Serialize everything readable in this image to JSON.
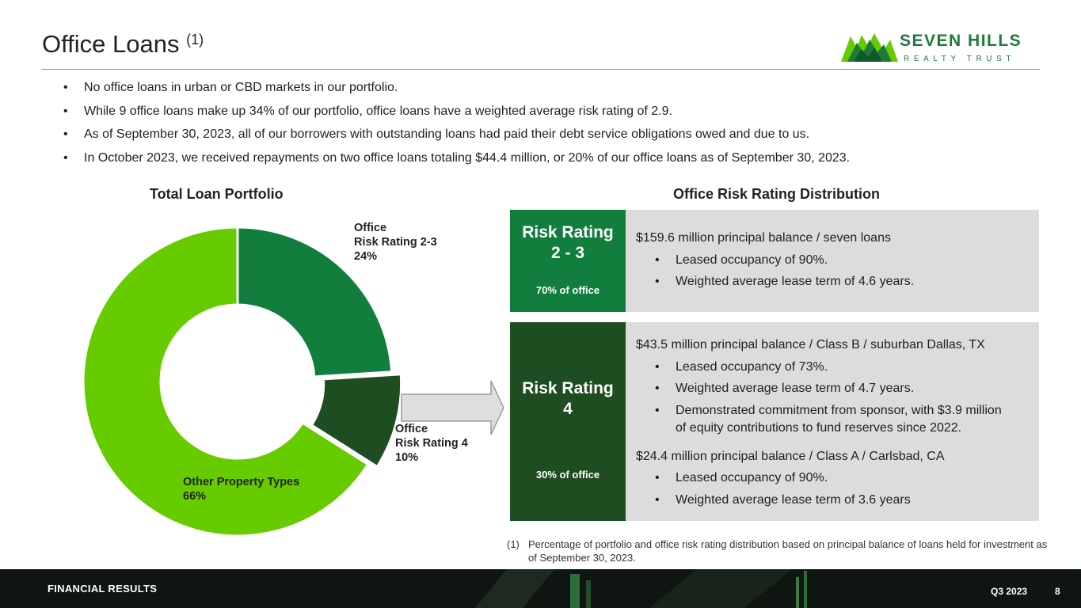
{
  "header": {
    "title": "Office Loans",
    "title_note": "(1)",
    "logo_name": "SEVEN HILLS",
    "logo_sub": "REALTY TRUST",
    "logo_icon": "mountain-peaks-icon"
  },
  "bullets": [
    "No office loans in urban or CBD markets in our portfolio.",
    "While 9 office loans make up 34% of our portfolio, office loans have a weighted average risk rating of 2.9.",
    "As of September 30, 2023, all of our borrowers with outstanding loans had paid their debt service obligations owed and due to us.",
    "In October 2023, we received repayments on two office loans totaling $44.4 million, or 20% of our office loans as of September 30, 2023."
  ],
  "chart_data": {
    "type": "pie",
    "variant": "donut",
    "title": "Total Loan Portfolio",
    "slices": [
      {
        "label": "Office\nRisk Rating 2-3\n24%",
        "value": 24,
        "color": "#117e3e"
      },
      {
        "label": "Office\nRisk Rating 4\n10%",
        "value": 10,
        "color": "#1f4d22",
        "exploded": true
      },
      {
        "label": "Other Property Types\n66%",
        "value": 66,
        "color": "#66cc00"
      }
    ],
    "legend": "none"
  },
  "distribution": {
    "title": "Office Risk Rating Distribution",
    "rating_23": {
      "title_line1": "Risk Rating",
      "title_line2": "2 - 3",
      "share": "70% of office",
      "color": "#117e3e",
      "lines": [
        {
          "text": "$159.6 million principal balance / seven loans",
          "kind": "head"
        },
        {
          "text": "Leased occupancy of 90%.",
          "kind": "bullet"
        },
        {
          "text": "Weighted average lease term of 4.6 years.",
          "kind": "bullet"
        }
      ]
    },
    "rating_4": {
      "title_line1": "Risk Rating",
      "title_line2": "4",
      "share": "30% of office",
      "color": "#1f4d22",
      "lines": [
        {
          "text": "$43.5 million principal balance / Class B / suburban Dallas, TX",
          "kind": "head"
        },
        {
          "text": "Leased occupancy of 73%.",
          "kind": "bullet"
        },
        {
          "text": "Weighted average lease term of 4.7 years.",
          "kind": "bullet"
        },
        {
          "text": "Demonstrated commitment from sponsor, with $3.9 million",
          "kind": "bullet"
        },
        {
          "text": "of equity contributions to fund reserves since 2022.",
          "kind": "cont"
        },
        {
          "text": "$24.4 million principal balance / Class A / Carlsbad, CA",
          "kind": "head"
        },
        {
          "text": "Leased occupancy of 90%.",
          "kind": "bullet"
        },
        {
          "text": "Weighted average lease term of 3.6 years",
          "kind": "bullet"
        }
      ]
    }
  },
  "footnote": {
    "number": "(1)",
    "text": "Percentage of portfolio and office risk rating distribution based on principal balance of loans held for investment as of September 30, 2023."
  },
  "footer": {
    "section": "FINANCIAL RESULTS",
    "quarter": "Q3 2023",
    "page": "8"
  }
}
